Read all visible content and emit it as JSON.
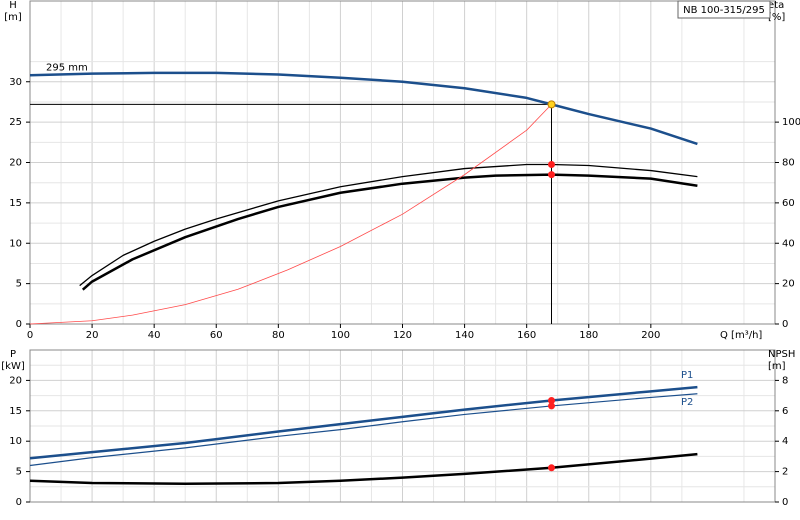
{
  "chart_data": [
    {
      "type": "line",
      "model_label": "NB 100-315/295",
      "ylabel": "H",
      "yunit": "[m]",
      "y2label": "eta",
      "y2unit": "[%]",
      "xlabel": "Q [m³/h]",
      "xlim": [
        0,
        240
      ],
      "xticks": [
        0,
        20,
        40,
        60,
        80,
        100,
        120,
        140,
        160,
        180,
        200
      ],
      "ylim": [
        0,
        40
      ],
      "yticks": [
        0,
        5,
        10,
        15,
        20,
        25,
        30
      ],
      "y2lim": [
        0,
        160
      ],
      "y2ticks": [
        0,
        20,
        40,
        60,
        80,
        100
      ],
      "grid": true,
      "crosshair": true,
      "series": [
        {
          "name": "295 mm",
          "color": "#1c4f8c",
          "width": 2.5,
          "x": [
            0,
            20,
            40,
            60,
            80,
            100,
            120,
            140,
            160,
            168,
            180,
            200,
            215
          ],
          "values": [
            30.8,
            31.0,
            31.1,
            31.1,
            30.9,
            30.5,
            30.0,
            29.2,
            28.0,
            27.2,
            26.0,
            24.2,
            22.3
          ]
        },
        {
          "color": "#000000",
          "width": 1.3,
          "axis": "y2",
          "x": [
            16,
            20,
            30,
            40,
            50,
            60,
            80,
            100,
            120,
            140,
            160,
            168,
            180,
            200,
            215
          ],
          "values": [
            19,
            24,
            34,
            41,
            47,
            52,
            61,
            68,
            73,
            77,
            79,
            79,
            78.5,
            76,
            73
          ]
        },
        {
          "color": "#000000",
          "width": 2.5,
          "axis": "y2",
          "x": [
            17,
            20,
            33,
            50,
            67,
            80,
            100,
            120,
            140,
            150,
            168,
            180,
            200,
            215
          ],
          "values": [
            17,
            21,
            32,
            43,
            52,
            58,
            65,
            69.5,
            72.5,
            73.5,
            74,
            73.5,
            72,
            68.5
          ]
        },
        {
          "color": "#ff4a4a",
          "width": 0.8,
          "x": [
            0,
            20,
            33,
            50,
            67,
            83,
            100,
            120,
            140,
            160,
            168
          ],
          "values": [
            0,
            0.4,
            1.1,
            2.4,
            4.3,
            6.7,
            9.6,
            13.6,
            18.5,
            24,
            27.2
          ]
        }
      ],
      "points": [
        {
          "x": 168,
          "y": 27.2,
          "color": "#ffd21f"
        },
        {
          "x": 168,
          "y": 79,
          "axis": "y2",
          "color": "#ff2020"
        },
        {
          "x": 168,
          "y": 74,
          "axis": "y2",
          "color": "#ff2020"
        }
      ]
    },
    {
      "type": "line",
      "ylabel": "P",
      "yunit": "[kW]",
      "y2label": "NPSH",
      "y2unit": "[m]",
      "xlim": [
        0,
        240
      ],
      "ylim": [
        0,
        25
      ],
      "yticks": [
        0,
        5,
        10,
        15,
        20
      ],
      "y2lim": [
        0,
        10
      ],
      "y2ticks": [
        0,
        2,
        4,
        6,
        8
      ],
      "grid": true,
      "series": [
        {
          "name": "P1",
          "color": "#1c4f8c",
          "width": 2.5,
          "x": [
            0,
            20,
            50,
            80,
            100,
            120,
            140,
            168,
            200,
            215
          ],
          "values": [
            7.2,
            8.2,
            9.7,
            11.6,
            12.8,
            14.0,
            15.2,
            16.7,
            18.2,
            18.9
          ]
        },
        {
          "name": "P2",
          "color": "#1c4f8c",
          "width": 1.2,
          "x": [
            0,
            20,
            50,
            80,
            100,
            120,
            140,
            168,
            200,
            215
          ],
          "values": [
            6.0,
            7.3,
            8.9,
            10.8,
            11.9,
            13.2,
            14.4,
            15.8,
            17.2,
            17.8
          ]
        },
        {
          "color": "#000000",
          "width": 2.5,
          "axis": "y2",
          "x": [
            0,
            20,
            50,
            80,
            100,
            120,
            140,
            168,
            200,
            215
          ],
          "values": [
            1.4,
            1.25,
            1.2,
            1.25,
            1.4,
            1.6,
            1.85,
            2.25,
            2.85,
            3.15
          ]
        }
      ],
      "points": [
        {
          "x": 168,
          "y": 16.7,
          "color": "#ff2020"
        },
        {
          "x": 168,
          "y": 15.8,
          "color": "#ff2020"
        },
        {
          "x": 168,
          "y": 2.25,
          "axis": "y2",
          "color": "#ff2020"
        }
      ]
    }
  ]
}
